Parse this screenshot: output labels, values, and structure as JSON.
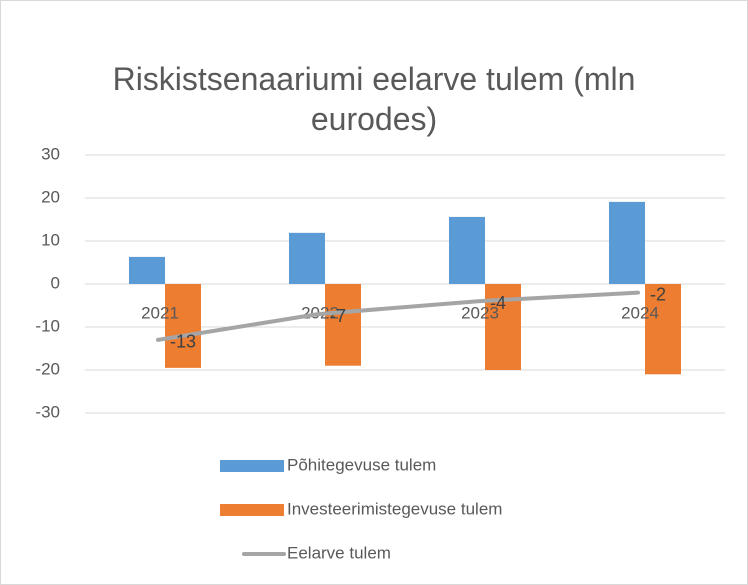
{
  "chart_data": {
    "type": "bar-line",
    "title": "Riskistsenaariumi eelarve tulem (mln eurodes)",
    "categories": [
      "2021",
      "2022",
      "2023",
      "2024"
    ],
    "series": [
      {
        "name": "Põhitegevuse tulem",
        "type": "bar",
        "color": "#5b9bd5",
        "values": [
          6.3,
          11.9,
          15.6,
          19.1
        ]
      },
      {
        "name": "Investeerimistegevuse tulem",
        "type": "bar",
        "color": "#ed7d31",
        "values": [
          -19.5,
          -19,
          -20,
          -21
        ]
      },
      {
        "name": "Eelarve tulem",
        "type": "line",
        "color": "#a5a5a5",
        "values": [
          -13,
          -7,
          -4,
          -2
        ],
        "data_labels": true
      }
    ],
    "ylim": [
      -30,
      30
    ],
    "yticks": [
      -30,
      -20,
      -10,
      0,
      10,
      20,
      30
    ],
    "grid": true,
    "legend": "bottom"
  }
}
